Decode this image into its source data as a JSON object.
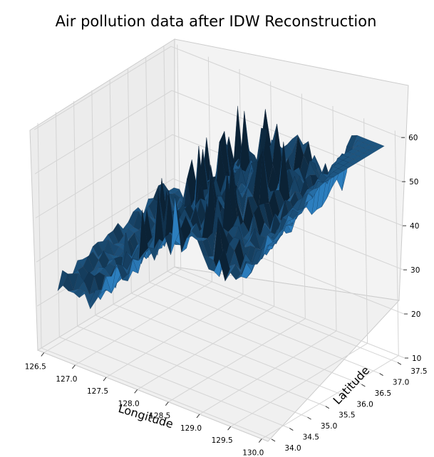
{
  "chart_data": {
    "type": "surface3d",
    "title": "Air pollution data after IDW Reconstruction",
    "xlabel": "Longitude",
    "ylabel": "Latitude",
    "zlabel": "",
    "x_ticks": [
      "126.5",
      "127.0",
      "127.5",
      "128.0",
      "128.5",
      "129.0",
      "129.5",
      "130.0"
    ],
    "y_ticks": [
      "34.0",
      "34.5",
      "35.0",
      "35.5",
      "36.0",
      "36.5",
      "37.0",
      "37.5"
    ],
    "z_ticks": [
      "10",
      "20",
      "30",
      "40",
      "50",
      "60"
    ],
    "xlim": [
      126.4,
      130.1
    ],
    "ylim": [
      33.9,
      37.7
    ],
    "zlim": [
      10,
      61
    ],
    "grid": true,
    "colors": {
      "surface": "#1f77b4",
      "surface_dark": "#0b2235",
      "pane": "#f2f2f2",
      "pane_side": "#e9e9e9",
      "grid": "#d4d4d4"
    },
    "surface_profile": {
      "description_points": [
        {
          "x": 126.5,
          "z": 22
        },
        {
          "x": 127.0,
          "z": 20
        },
        {
          "x": 127.5,
          "z": 28
        },
        {
          "x": 128.0,
          "z": 36
        },
        {
          "x": 128.5,
          "z": 42
        },
        {
          "x": 129.0,
          "z": 38
        },
        {
          "x": 129.5,
          "z": 40
        },
        {
          "x": 130.0,
          "z": 52
        }
      ]
    }
  }
}
